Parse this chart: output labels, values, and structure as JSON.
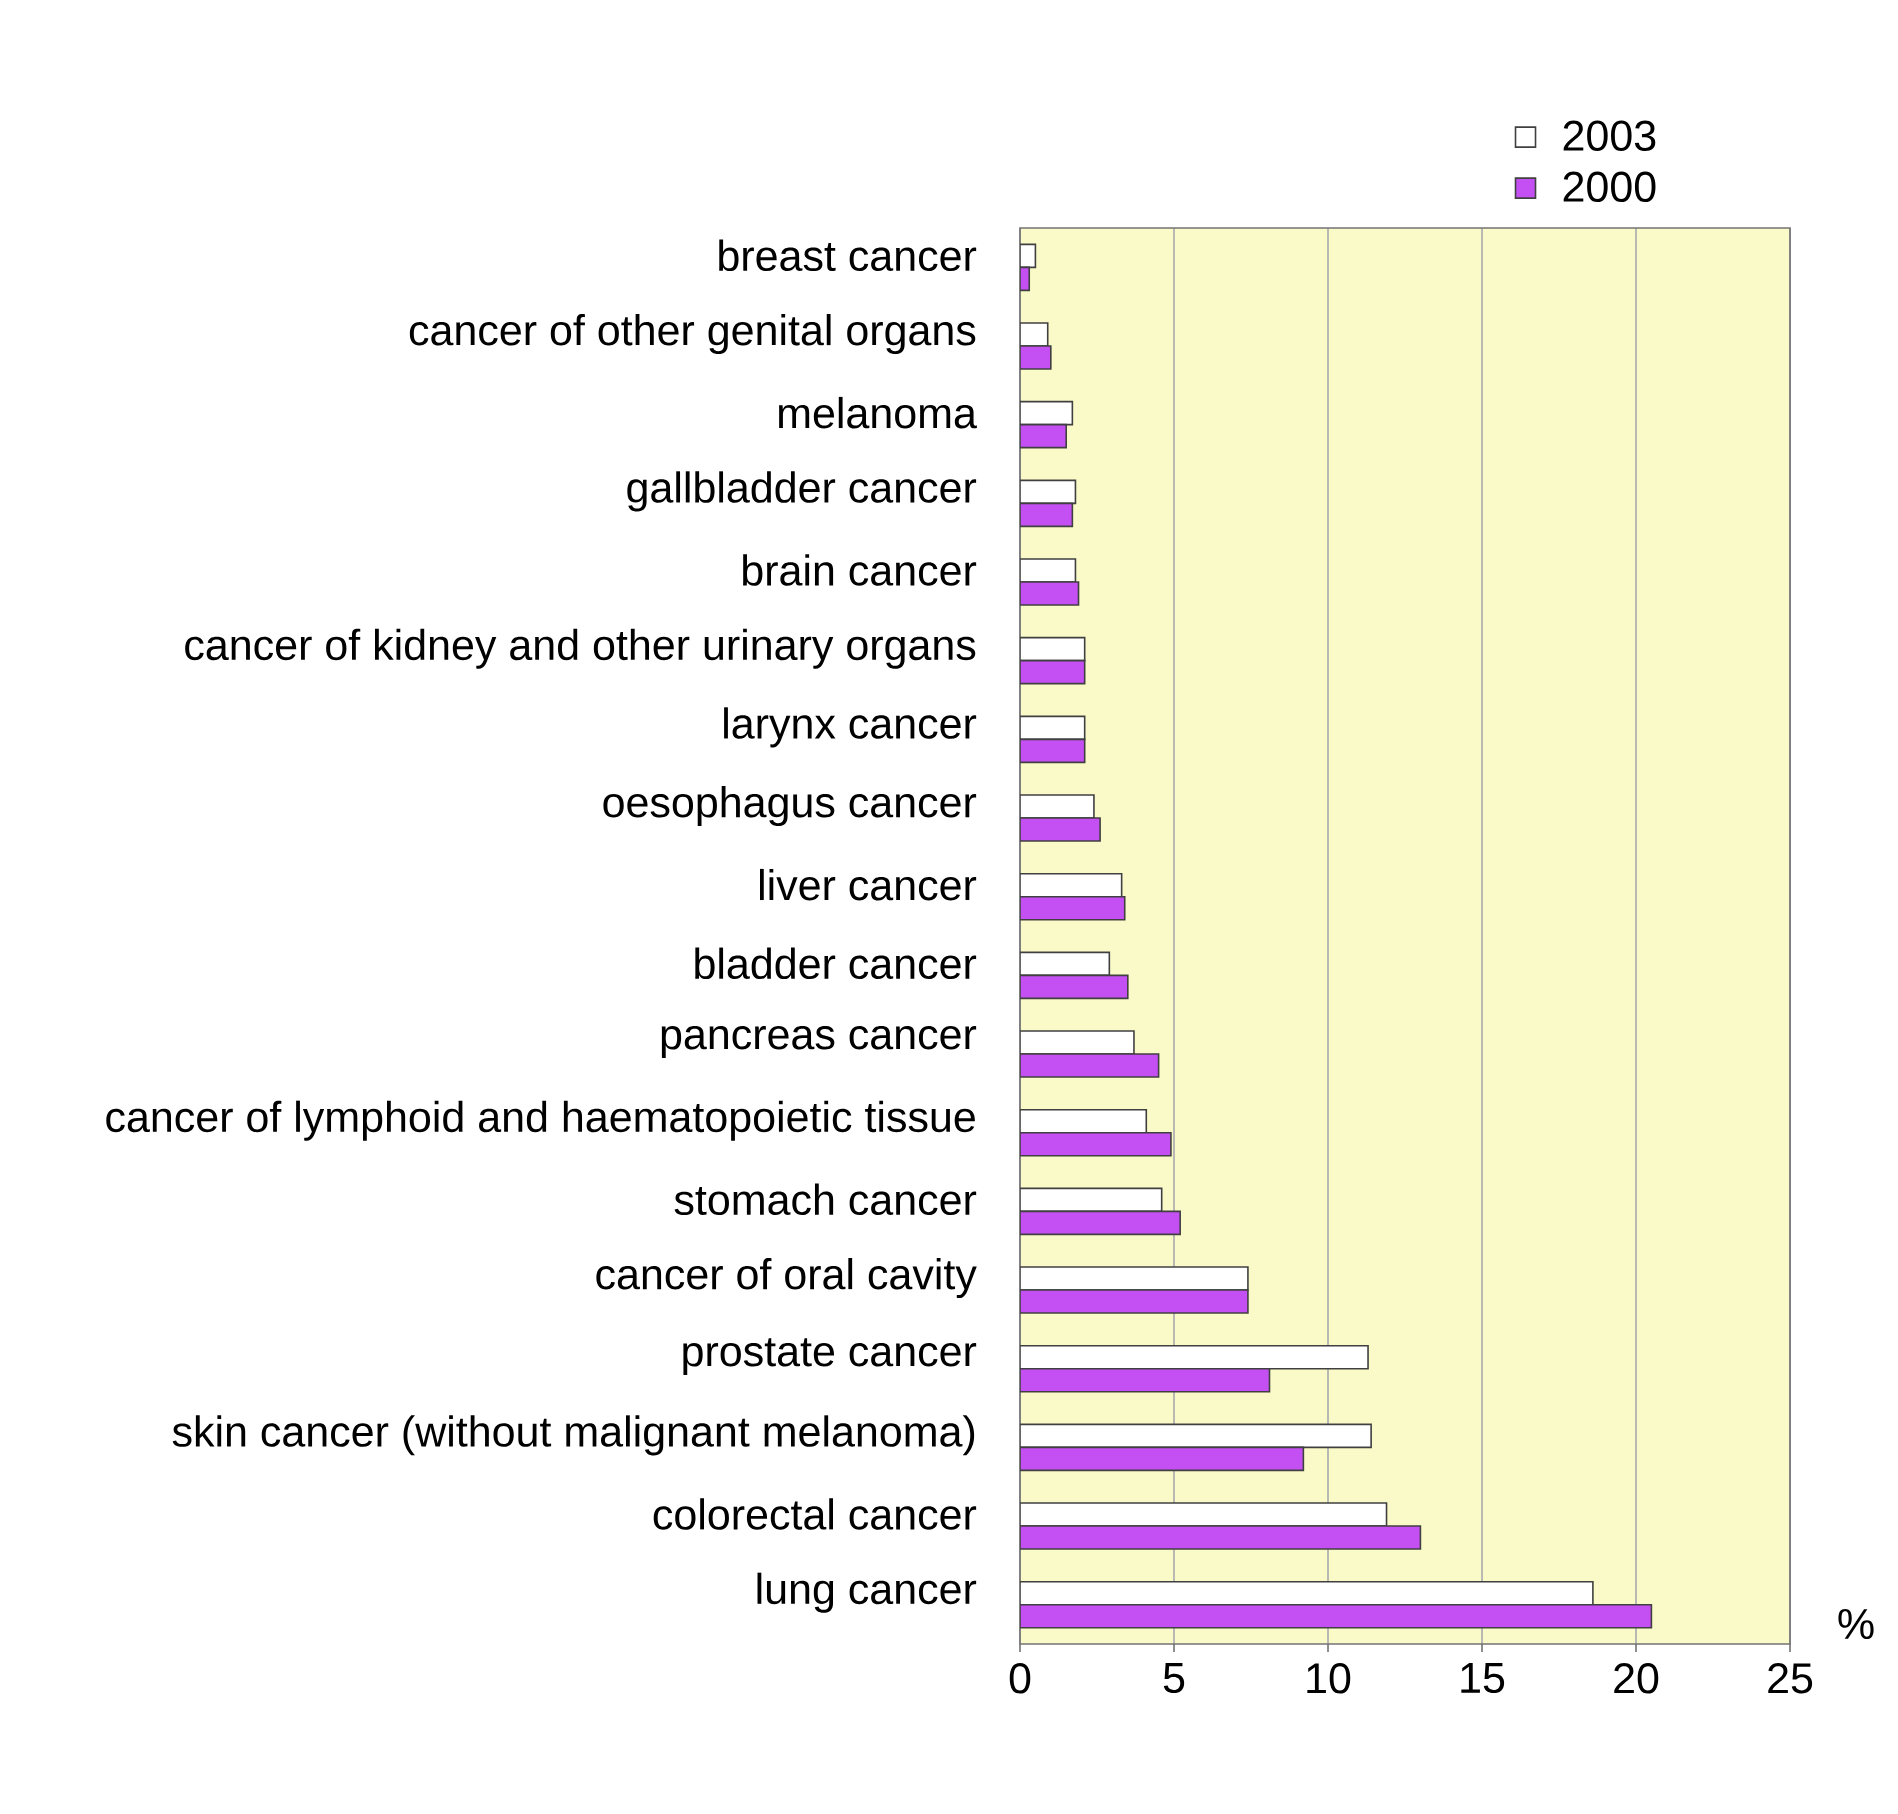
{
  "chart_data": {
    "type": "bar",
    "orientation": "horizontal",
    "categories": [
      "breast cancer",
      "cancer of other genital organs",
      "melanoma",
      "gallbladder cancer",
      "brain cancer",
      "cancer of kidney and other urinary organs",
      "larynx cancer",
      "oesophagus cancer",
      "liver cancer",
      "bladder cancer",
      "pancreas cancer",
      "cancer of lymphoid and haematopoietic tissue",
      "stomach cancer",
      "cancer of oral cavity",
      "prostate cancer",
      "skin cancer (without malignant melanoma)",
      "colorectal cancer",
      "lung cancer"
    ],
    "series": [
      {
        "name": "2003",
        "color": "#ffffff",
        "values": [
          0.5,
          0.9,
          1.7,
          1.8,
          1.8,
          2.1,
          2.1,
          2.4,
          3.3,
          2.9,
          3.7,
          4.1,
          4.6,
          7.4,
          11.3,
          11.4,
          11.9,
          18.6
        ]
      },
      {
        "name": "2000",
        "color": "#c44ff2",
        "values": [
          0.3,
          1.0,
          1.5,
          1.7,
          1.9,
          2.1,
          2.1,
          2.6,
          3.4,
          3.5,
          4.5,
          4.9,
          5.2,
          7.4,
          8.1,
          9.2,
          13.0,
          20.5
        ]
      }
    ],
    "xlabel": "%",
    "xlim": [
      0,
      25
    ],
    "xticks": [
      0,
      5,
      10,
      15,
      20,
      25
    ],
    "grid": "x",
    "legend": "top right"
  }
}
